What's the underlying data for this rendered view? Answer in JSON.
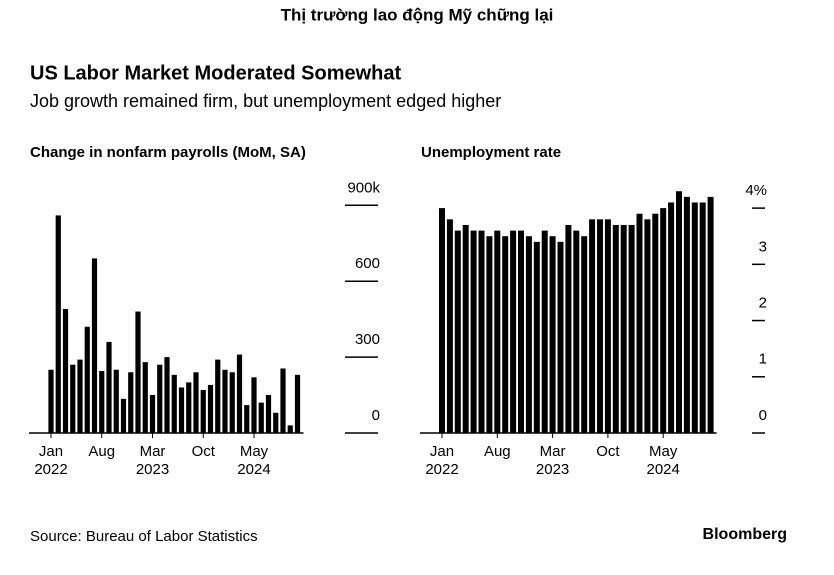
{
  "page_title": "Thị trường lao động Mỹ chững lại",
  "title": "US Labor Market Moderated Somewhat",
  "subtitle": "Job growth remained firm, but unemployment edged higher",
  "source": "Source: Bureau of Labor Statistics",
  "brand": "Bloomberg",
  "chart_data": [
    {
      "type": "bar",
      "title": "Change in nonfarm payrolls (MoM, SA)",
      "color": "#000000",
      "categories": [
        "Jan",
        null,
        null,
        null,
        null,
        null,
        null,
        "Aug",
        null,
        null,
        null,
        null,
        null,
        null,
        "Mar",
        null,
        null,
        null,
        null,
        null,
        null,
        "Oct",
        null,
        null,
        null,
        null,
        null,
        null,
        "May",
        null,
        null,
        null,
        null,
        null,
        null
      ],
      "years": [
        "2022",
        null,
        null,
        null,
        null,
        null,
        null,
        null,
        null,
        null,
        null,
        null,
        null,
        null,
        "2023",
        null,
        null,
        null,
        null,
        null,
        null,
        null,
        null,
        null,
        null,
        null,
        null,
        null,
        "2024",
        null,
        null,
        null,
        null,
        null,
        null
      ],
      "values": [
        250,
        860,
        490,
        270,
        290,
        420,
        690,
        245,
        360,
        250,
        135,
        240,
        480,
        280,
        150,
        270,
        300,
        230,
        180,
        200,
        240,
        170,
        190,
        290,
        250,
        240,
        310,
        110,
        220,
        120,
        150,
        80,
        255,
        30,
        230
      ],
      "ylim": [
        0,
        1000
      ],
      "yticks": [
        0,
        300,
        600,
        {
          "value": 900,
          "label": "900k"
        }
      ]
    },
    {
      "type": "bar",
      "title": "Unemployment rate",
      "color": "#000000",
      "categories": [
        "Jan",
        null,
        null,
        null,
        null,
        null,
        null,
        "Aug",
        null,
        null,
        null,
        null,
        null,
        null,
        "Mar",
        null,
        null,
        null,
        null,
        null,
        null,
        "Oct",
        null,
        null,
        null,
        null,
        null,
        null,
        "May",
        null,
        null,
        null,
        null,
        null,
        null
      ],
      "years": [
        "2022",
        null,
        null,
        null,
        null,
        null,
        null,
        null,
        null,
        null,
        null,
        null,
        null,
        null,
        "2023",
        null,
        null,
        null,
        null,
        null,
        null,
        null,
        null,
        null,
        null,
        null,
        null,
        null,
        "2024",
        null,
        null,
        null,
        null,
        null,
        null
      ],
      "values": [
        4.0,
        3.8,
        3.6,
        3.7,
        3.6,
        3.6,
        3.5,
        3.6,
        3.5,
        3.6,
        3.6,
        3.5,
        3.4,
        3.6,
        3.5,
        3.4,
        3.7,
        3.6,
        3.5,
        3.8,
        3.8,
        3.8,
        3.7,
        3.7,
        3.7,
        3.9,
        3.8,
        3.9,
        4.0,
        4.1,
        4.3,
        4.2,
        4.1,
        4.1,
        4.2
      ],
      "ylim": [
        0,
        4.5
      ],
      "yticks": [
        0,
        1,
        2,
        3,
        {
          "value": 4,
          "label": "4%"
        }
      ]
    }
  ]
}
